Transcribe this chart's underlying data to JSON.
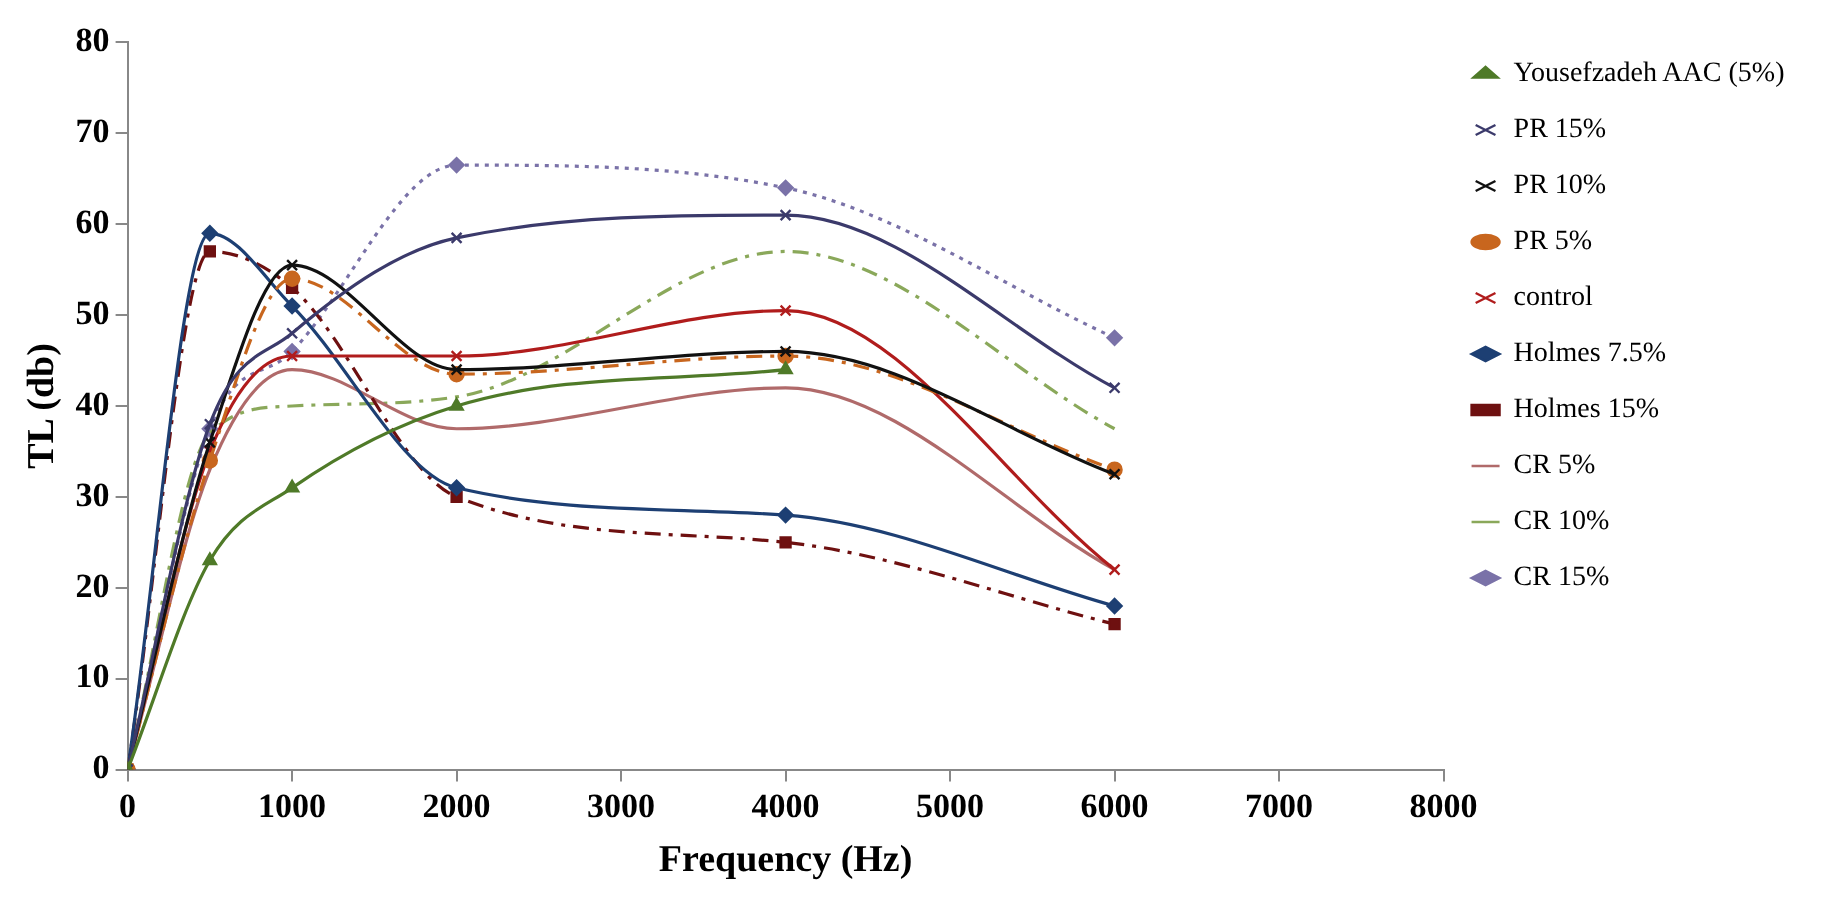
{
  "chart_data": {
    "type": "line",
    "xlabel": "Frequency (Hz)",
    "ylabel": "TL (db)",
    "xlim": [
      0,
      8000
    ],
    "xticks": [
      0,
      1000,
      2000,
      3000,
      4000,
      5000,
      6000,
      7000,
      8000
    ],
    "ylim": [
      0,
      80
    ],
    "yticks": [
      0,
      10,
      20,
      30,
      40,
      50,
      60,
      70,
      80
    ],
    "grid": false,
    "legend": "right",
    "series": [
      {
        "name": "Yousefzadeh AAC (5%)",
        "color": "#4f7a28",
        "x": [
          0,
          500,
          1000,
          2000,
          4000
        ],
        "values": [
          0,
          23,
          31,
          40,
          44
        ],
        "marker": "triangle",
        "line_style": "solid"
      },
      {
        "name": "PR 15%",
        "color": "#3b3a6b",
        "x": [
          0,
          500,
          1000,
          2000,
          4000,
          6000
        ],
        "values": [
          0,
          38,
          48,
          58.5,
          61,
          42
        ],
        "marker": "cross",
        "line_style": "solid"
      },
      {
        "name": "PR 10%",
        "color": "#111111",
        "x": [
          0,
          500,
          1000,
          2000,
          4000,
          6000
        ],
        "values": [
          0,
          36,
          55.5,
          44,
          46,
          32.5
        ],
        "marker": "cross",
        "line_style": "solid"
      },
      {
        "name": "PR 5%",
        "color": "#c8661e",
        "x": [
          0,
          500,
          1000,
          2000,
          4000,
          6000
        ],
        "values": [
          0,
          34,
          54,
          43.5,
          45.5,
          33
        ],
        "marker": "circle",
        "line_style": "dashed"
      },
      {
        "name": "control",
        "color": "#b01c1c",
        "x": [
          0,
          500,
          1000,
          2000,
          4000,
          6000
        ],
        "values": [
          0,
          35,
          45.5,
          45.5,
          50.5,
          22
        ],
        "marker": "cross",
        "line_style": "solid"
      },
      {
        "name": "Holmes 7.5%",
        "color": "#1d3f73",
        "x": [
          0,
          500,
          1000,
          2000,
          4000,
          6000
        ],
        "values": [
          0,
          59,
          51,
          31,
          28,
          18
        ],
        "marker": "diamond",
        "line_style": "solid"
      },
      {
        "name": "Holmes 15%",
        "color": "#6e1010",
        "x": [
          0,
          500,
          1000,
          2000,
          4000,
          6000
        ],
        "values": [
          0,
          57,
          53,
          30,
          25,
          16
        ],
        "marker": "square",
        "line_style": "dashed"
      },
      {
        "name": "CR 5%",
        "color": "#b06a6a",
        "x": [
          0,
          500,
          1000,
          2000,
          4000,
          6000
        ],
        "values": [
          0,
          33,
          44,
          37.5,
          42,
          22
        ],
        "marker": "none",
        "line_style": "solid"
      },
      {
        "name": "CR 10%",
        "color": "#8aa85a",
        "x": [
          0,
          500,
          1000,
          2000,
          4000,
          6000
        ],
        "values": [
          0,
          37,
          40,
          41,
          57,
          37.5
        ],
        "marker": "none",
        "line_style": "dashed"
      },
      {
        "name": "CR 15%",
        "color": "#7a72a8",
        "x": [
          0,
          500,
          1000,
          2000,
          4000,
          6000
        ],
        "values": [
          0,
          37.5,
          46,
          66.5,
          64,
          47.5
        ],
        "marker": "diamond",
        "line_style": "dotted"
      }
    ]
  }
}
